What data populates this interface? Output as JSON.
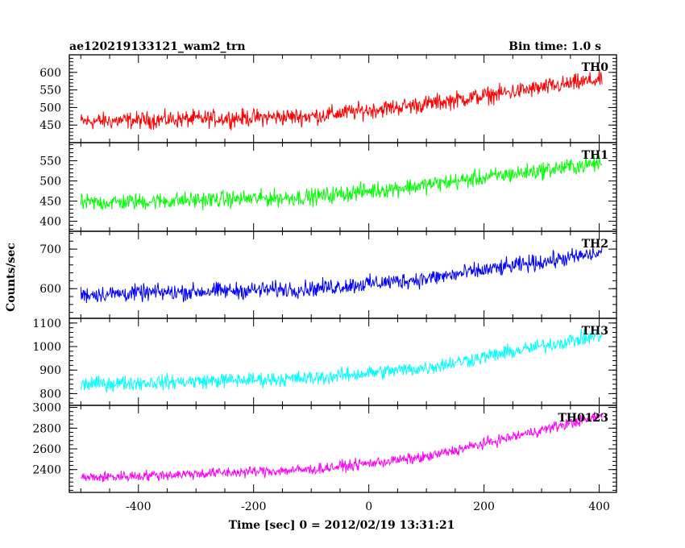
{
  "header": {
    "title": "ae120219133121_wam2_trn",
    "bin_time": "Bin time: 1.0 s"
  },
  "ylabel": "Counts/sec",
  "xlabel": "Time [sec] 0 = 2012/02/19 13:31:21",
  "chart_data": {
    "type": "line",
    "title": "ae120219133121_wam2_trn",
    "subtitle": "Bin time: 1.0 s",
    "xlabel": "Time [sec] 0 = 2012/02/19 13:31:21",
    "ylabel": "Counts/sec",
    "xlim": [
      -520,
      430
    ],
    "x_ticks": [
      -400,
      -200,
      0,
      200,
      400
    ],
    "x_range": [
      -500,
      405
    ],
    "panels": [
      {
        "name": "TH0",
        "color": "#ff0000",
        "ylim": [
          400,
          650
        ],
        "y_ticks": [
          450,
          500,
          550,
          600
        ],
        "trend": [
          [
            -500,
            460
          ],
          [
            -100,
            475
          ],
          [
            100,
            510
          ],
          [
            405,
            580
          ]
        ],
        "noise_amp": 35
      },
      {
        "name": "TH1",
        "color": "#00ff00",
        "ylim": [
          375,
          595
        ],
        "y_ticks": [
          400,
          450,
          500,
          550
        ],
        "trend": [
          [
            -500,
            445
          ],
          [
            -100,
            460
          ],
          [
            100,
            490
          ],
          [
            405,
            545
          ]
        ],
        "noise_amp": 30
      },
      {
        "name": "TH2",
        "color": "#0000ff",
        "ylim": [
          525,
          745
        ],
        "y_ticks": [
          600,
          700
        ],
        "trend": [
          [
            -500,
            585
          ],
          [
            -100,
            600
          ],
          [
            100,
            625
          ],
          [
            405,
            690
          ]
        ],
        "noise_amp": 30
      },
      {
        "name": "TH3",
        "color": "#00ffff",
        "ylim": [
          750,
          1120
        ],
        "y_ticks": [
          800,
          900,
          1000,
          1100
        ],
        "trend": [
          [
            -500,
            840
          ],
          [
            -100,
            865
          ],
          [
            100,
            910
          ],
          [
            405,
            1050
          ]
        ],
        "noise_amp": 45
      },
      {
        "name": "TH0123",
        "color": "#ff00ff",
        "ylim": [
          2180,
          3020
        ],
        "y_ticks": [
          2400,
          2600,
          2800,
          3000
        ],
        "trend": [
          [
            -500,
            2320
          ],
          [
            -100,
            2400
          ],
          [
            100,
            2520
          ],
          [
            405,
            2920
          ]
        ],
        "noise_amp": 75
      }
    ]
  }
}
